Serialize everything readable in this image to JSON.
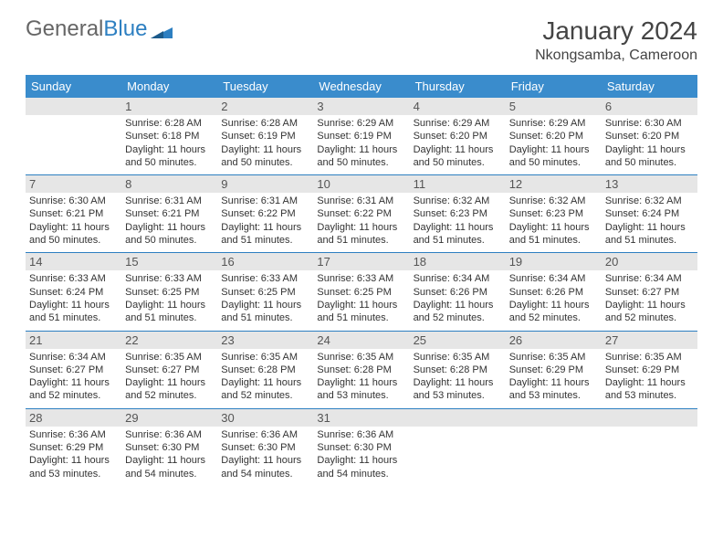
{
  "logo": {
    "general": "General",
    "blue": "Blue"
  },
  "header": {
    "month_title": "January 2024",
    "location": "Nkongsamba, Cameroon"
  },
  "colors": {
    "header_bar": "#3a8ccc",
    "row_divider": "#2d7fc1",
    "daynum_bg": "#e6e6e6",
    "text": "#333333",
    "logo_gray": "#666666",
    "logo_blue": "#2d7fc1"
  },
  "days_of_week": [
    "Sunday",
    "Monday",
    "Tuesday",
    "Wednesday",
    "Thursday",
    "Friday",
    "Saturday"
  ],
  "calendar": {
    "first_weekday": 1,
    "num_days": 31,
    "cells": [
      {
        "n": 1,
        "sr": "6:28 AM",
        "ss": "6:18 PM",
        "dl": "11 hours and 50 minutes."
      },
      {
        "n": 2,
        "sr": "6:28 AM",
        "ss": "6:19 PM",
        "dl": "11 hours and 50 minutes."
      },
      {
        "n": 3,
        "sr": "6:29 AM",
        "ss": "6:19 PM",
        "dl": "11 hours and 50 minutes."
      },
      {
        "n": 4,
        "sr": "6:29 AM",
        "ss": "6:20 PM",
        "dl": "11 hours and 50 minutes."
      },
      {
        "n": 5,
        "sr": "6:29 AM",
        "ss": "6:20 PM",
        "dl": "11 hours and 50 minutes."
      },
      {
        "n": 6,
        "sr": "6:30 AM",
        "ss": "6:20 PM",
        "dl": "11 hours and 50 minutes."
      },
      {
        "n": 7,
        "sr": "6:30 AM",
        "ss": "6:21 PM",
        "dl": "11 hours and 50 minutes."
      },
      {
        "n": 8,
        "sr": "6:31 AM",
        "ss": "6:21 PM",
        "dl": "11 hours and 50 minutes."
      },
      {
        "n": 9,
        "sr": "6:31 AM",
        "ss": "6:22 PM",
        "dl": "11 hours and 51 minutes."
      },
      {
        "n": 10,
        "sr": "6:31 AM",
        "ss": "6:22 PM",
        "dl": "11 hours and 51 minutes."
      },
      {
        "n": 11,
        "sr": "6:32 AM",
        "ss": "6:23 PM",
        "dl": "11 hours and 51 minutes."
      },
      {
        "n": 12,
        "sr": "6:32 AM",
        "ss": "6:23 PM",
        "dl": "11 hours and 51 minutes."
      },
      {
        "n": 13,
        "sr": "6:32 AM",
        "ss": "6:24 PM",
        "dl": "11 hours and 51 minutes."
      },
      {
        "n": 14,
        "sr": "6:33 AM",
        "ss": "6:24 PM",
        "dl": "11 hours and 51 minutes."
      },
      {
        "n": 15,
        "sr": "6:33 AM",
        "ss": "6:25 PM",
        "dl": "11 hours and 51 minutes."
      },
      {
        "n": 16,
        "sr": "6:33 AM",
        "ss": "6:25 PM",
        "dl": "11 hours and 51 minutes."
      },
      {
        "n": 17,
        "sr": "6:33 AM",
        "ss": "6:25 PM",
        "dl": "11 hours and 51 minutes."
      },
      {
        "n": 18,
        "sr": "6:34 AM",
        "ss": "6:26 PM",
        "dl": "11 hours and 52 minutes."
      },
      {
        "n": 19,
        "sr": "6:34 AM",
        "ss": "6:26 PM",
        "dl": "11 hours and 52 minutes."
      },
      {
        "n": 20,
        "sr": "6:34 AM",
        "ss": "6:27 PM",
        "dl": "11 hours and 52 minutes."
      },
      {
        "n": 21,
        "sr": "6:34 AM",
        "ss": "6:27 PM",
        "dl": "11 hours and 52 minutes."
      },
      {
        "n": 22,
        "sr": "6:35 AM",
        "ss": "6:27 PM",
        "dl": "11 hours and 52 minutes."
      },
      {
        "n": 23,
        "sr": "6:35 AM",
        "ss": "6:28 PM",
        "dl": "11 hours and 52 minutes."
      },
      {
        "n": 24,
        "sr": "6:35 AM",
        "ss": "6:28 PM",
        "dl": "11 hours and 53 minutes."
      },
      {
        "n": 25,
        "sr": "6:35 AM",
        "ss": "6:28 PM",
        "dl": "11 hours and 53 minutes."
      },
      {
        "n": 26,
        "sr": "6:35 AM",
        "ss": "6:29 PM",
        "dl": "11 hours and 53 minutes."
      },
      {
        "n": 27,
        "sr": "6:35 AM",
        "ss": "6:29 PM",
        "dl": "11 hours and 53 minutes."
      },
      {
        "n": 28,
        "sr": "6:36 AM",
        "ss": "6:29 PM",
        "dl": "11 hours and 53 minutes."
      },
      {
        "n": 29,
        "sr": "6:36 AM",
        "ss": "6:30 PM",
        "dl": "11 hours and 54 minutes."
      },
      {
        "n": 30,
        "sr": "6:36 AM",
        "ss": "6:30 PM",
        "dl": "11 hours and 54 minutes."
      },
      {
        "n": 31,
        "sr": "6:36 AM",
        "ss": "6:30 PM",
        "dl": "11 hours and 54 minutes."
      }
    ]
  },
  "labels": {
    "sunrise": "Sunrise:",
    "sunset": "Sunset:",
    "daylight": "Daylight:"
  }
}
